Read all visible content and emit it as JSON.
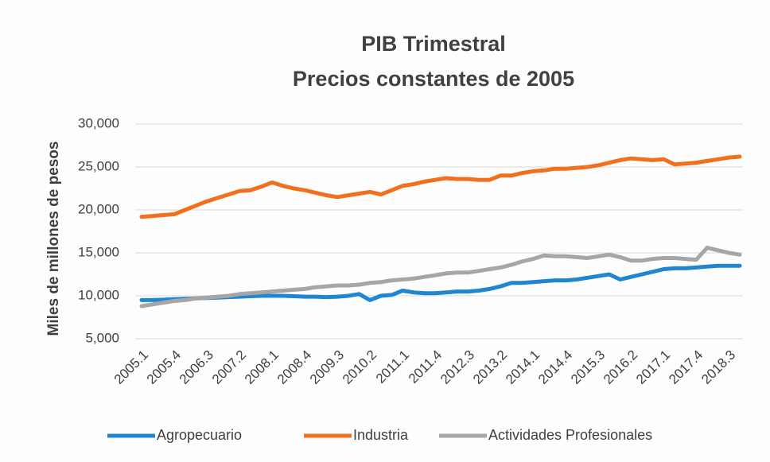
{
  "chart_data": {
    "type": "line",
    "title": "PIB Trimestral",
    "subtitle": "Precios constantes de 2005",
    "y_label": "Miles de millones de pesos",
    "categories": [
      "2005.1",
      null,
      null,
      "2005.4",
      null,
      null,
      "2006.3",
      null,
      null,
      "2007.2",
      null,
      null,
      "2008.1",
      null,
      null,
      "2008.4",
      null,
      null,
      "2009.3",
      null,
      null,
      "2010.2",
      null,
      null,
      "2011.1",
      null,
      null,
      "2011.4",
      null,
      null,
      "2012.3",
      null,
      null,
      "2013.2",
      null,
      null,
      "2014.1",
      null,
      null,
      "2014.4",
      null,
      null,
      "2015.3",
      null,
      null,
      "2016.2",
      null,
      null,
      "2017.1",
      null,
      null,
      "2017.4",
      null,
      null,
      "2018.3",
      null
    ],
    "series": [
      {
        "name": "Agropecuario",
        "color": "#1f86cf",
        "values": [
          9500,
          9500,
          9550,
          9600,
          9650,
          9700,
          9750,
          9800,
          9850,
          9900,
          9950,
          10000,
          10000,
          10000,
          9950,
          9900,
          9900,
          9850,
          9900,
          10000,
          10200,
          9500,
          10000,
          10100,
          10600,
          10400,
          10300,
          10300,
          10400,
          10500,
          10500,
          10600,
          10800,
          11100,
          11500,
          11500,
          11600,
          11700,
          11800,
          11800,
          11900,
          12100,
          12300,
          12500,
          11900,
          12200,
          12500,
          12800,
          13100,
          13200,
          13200,
          13300,
          13400,
          13500,
          13500,
          13500
        ]
      },
      {
        "name": "Industria",
        "color": "#f0701e",
        "values": [
          19200,
          19300,
          19400,
          19500,
          20000,
          20500,
          21000,
          21400,
          21800,
          22200,
          22300,
          22700,
          23200,
          22800,
          22500,
          22300,
          22000,
          21700,
          21500,
          21700,
          21900,
          22100,
          21800,
          22300,
          22800,
          23000,
          23300,
          23500,
          23700,
          23600,
          23600,
          23500,
          23500,
          24000,
          24000,
          24300,
          24500,
          24600,
          24800,
          24800,
          24900,
          25000,
          25200,
          25500,
          25800,
          26000,
          25900,
          25800,
          25900,
          25300,
          25400,
          25500,
          25700,
          25900,
          26100,
          26200
        ]
      },
      {
        "name": "Actividades Profesionales",
        "color": "#a6a6a6",
        "values": [
          8800,
          9000,
          9200,
          9400,
          9500,
          9700,
          9800,
          9900,
          10000,
          10200,
          10300,
          10400,
          10500,
          10600,
          10700,
          10800,
          11000,
          11100,
          11200,
          11200,
          11300,
          11500,
          11600,
          11800,
          11900,
          12000,
          12200,
          12400,
          12600,
          12700,
          12700,
          12900,
          13100,
          13300,
          13600,
          14000,
          14300,
          14700,
          14600,
          14600,
          14500,
          14400,
          14600,
          14800,
          14500,
          14100,
          14100,
          14300,
          14400,
          14400,
          14300,
          14200,
          15600,
          15300,
          15000,
          14800
        ]
      }
    ],
    "ylim": [
      5000,
      30000
    ],
    "yticks": [
      {
        "value": 5000,
        "label": "5,000"
      },
      {
        "value": 10000,
        "label": "10,000"
      },
      {
        "value": 15000,
        "label": "15,000"
      },
      {
        "value": 20000,
        "label": "20,000"
      },
      {
        "value": 25000,
        "label": "25,000"
      },
      {
        "value": 30000,
        "label": "30,000"
      }
    ],
    "grid": true,
    "legend": "bottom"
  }
}
